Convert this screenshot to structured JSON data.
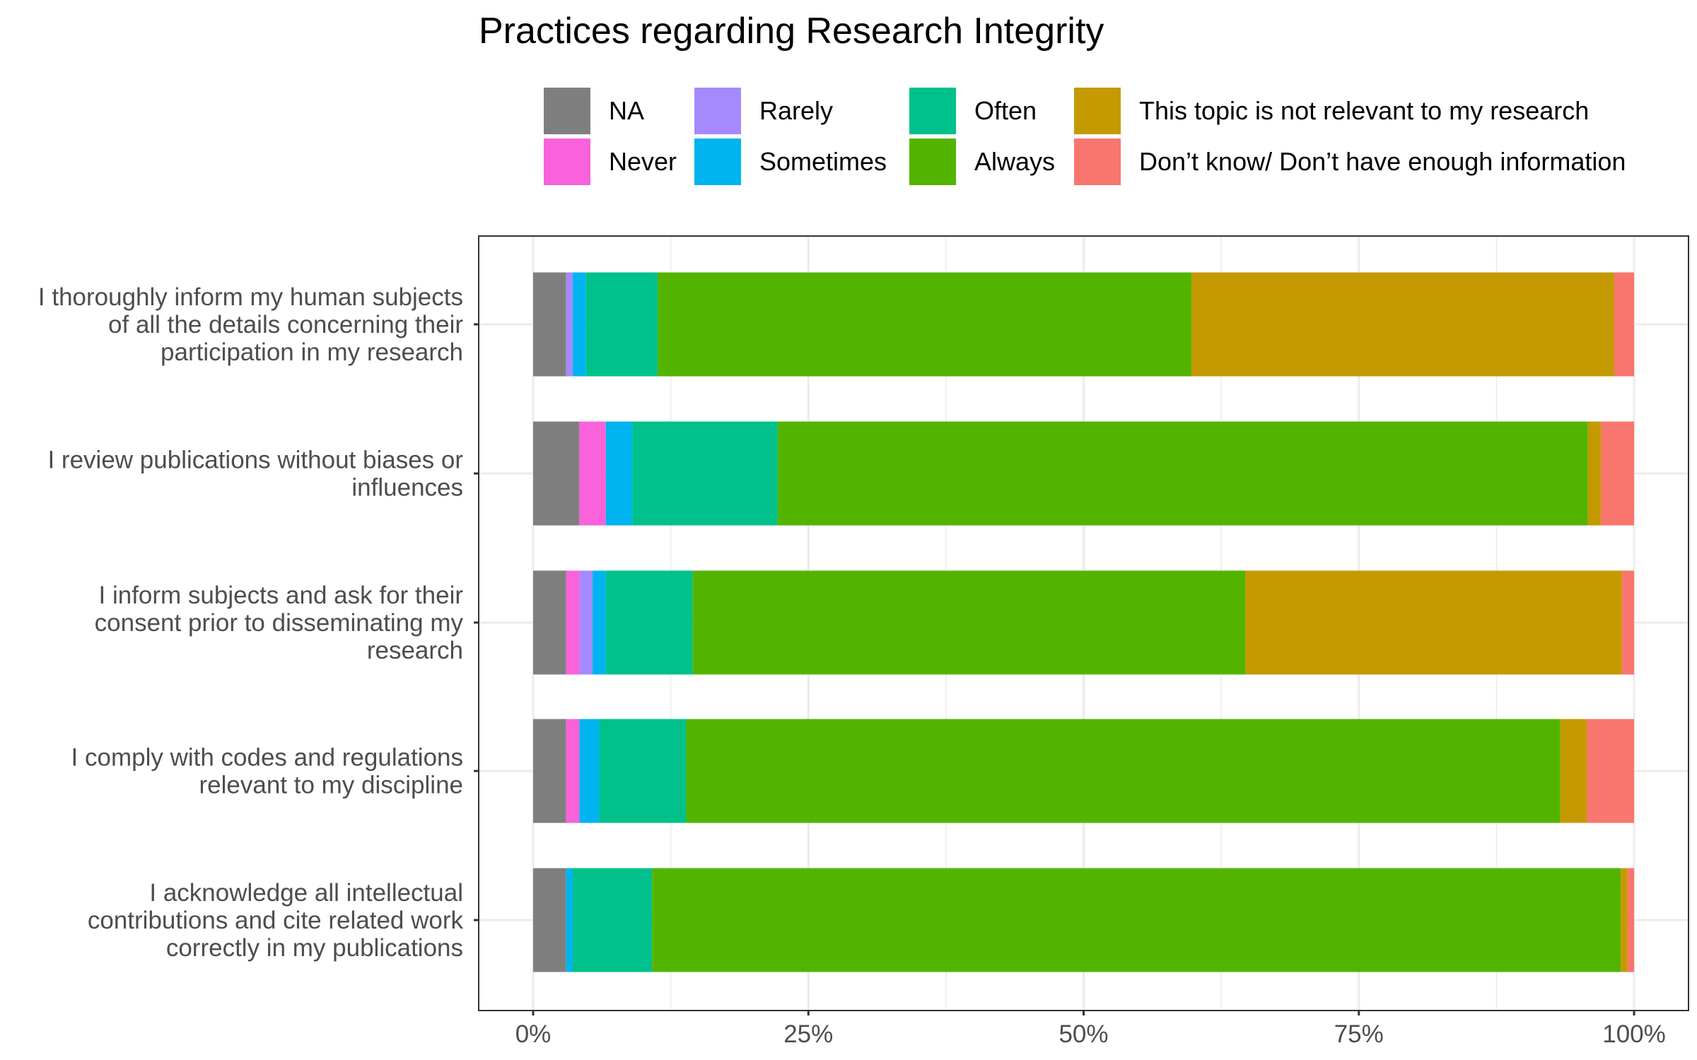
{
  "chart_data": {
    "type": "bar",
    "orientation": "horizontal",
    "stacked": "percent",
    "title": "Practices regarding Research Integrity",
    "xlabel": "",
    "ylabel": "",
    "xlim": [
      0,
      100
    ],
    "x_ticks": [
      "0%",
      "25%",
      "50%",
      "75%",
      "100%"
    ],
    "grid": true,
    "legend_position": "top",
    "categories": [
      "I thoroughly inform my human subjects of all the details concerning their participation in my research",
      "I review publications without biases or influences",
      "I inform subjects and ask for their consent prior to disseminating my research",
      "I comply with codes and regulations relevant to my discipline",
      "I acknowledge all intellectual contributions and cite related work correctly in my publications"
    ],
    "category_label_lines": [
      [
        "I thoroughly inform my human subjects",
        "of all the details concerning their",
        "participation in my research"
      ],
      [
        "I review publications without biases or",
        "influences"
      ],
      [
        "I inform subjects and ask for their",
        "consent prior to disseminating my",
        "research"
      ],
      [
        "I comply with codes and regulations",
        "relevant to my discipline"
      ],
      [
        "I acknowledge all intellectual",
        "contributions and cite related work",
        "correctly in my publications"
      ]
    ],
    "series": [
      {
        "name": "NA",
        "color": "#7f7f7f",
        "values": [
          3.0,
          4.2,
          3.0,
          3.0,
          3.0
        ]
      },
      {
        "name": "Never",
        "color": "#fa62db",
        "values": [
          0.0,
          2.4,
          1.2,
          1.2,
          0.0
        ]
      },
      {
        "name": "Rarely",
        "color": "#a58aff",
        "values": [
          0.6,
          0.0,
          1.2,
          0.0,
          0.0
        ]
      },
      {
        "name": "Sometimes",
        "color": "#00b4ef",
        "values": [
          1.2,
          2.4,
          1.2,
          1.8,
          0.6
        ]
      },
      {
        "name": "Often",
        "color": "#00c08b",
        "values": [
          6.5,
          13.2,
          7.9,
          7.9,
          7.2
        ]
      },
      {
        "name": "Always",
        "color": "#53b400",
        "values": [
          48.5,
          73.6,
          50.2,
          79.4,
          88.0
        ]
      },
      {
        "name": "This topic is not relevant to my research",
        "color": "#c49a00",
        "values": [
          38.4,
          1.2,
          34.2,
          2.4,
          0.6
        ]
      },
      {
        "name": "Don’t know/ Don’t have enough information",
        "color": "#f8766d",
        "values": [
          1.8,
          3.0,
          1.1,
          4.3,
          0.6
        ]
      }
    ]
  }
}
